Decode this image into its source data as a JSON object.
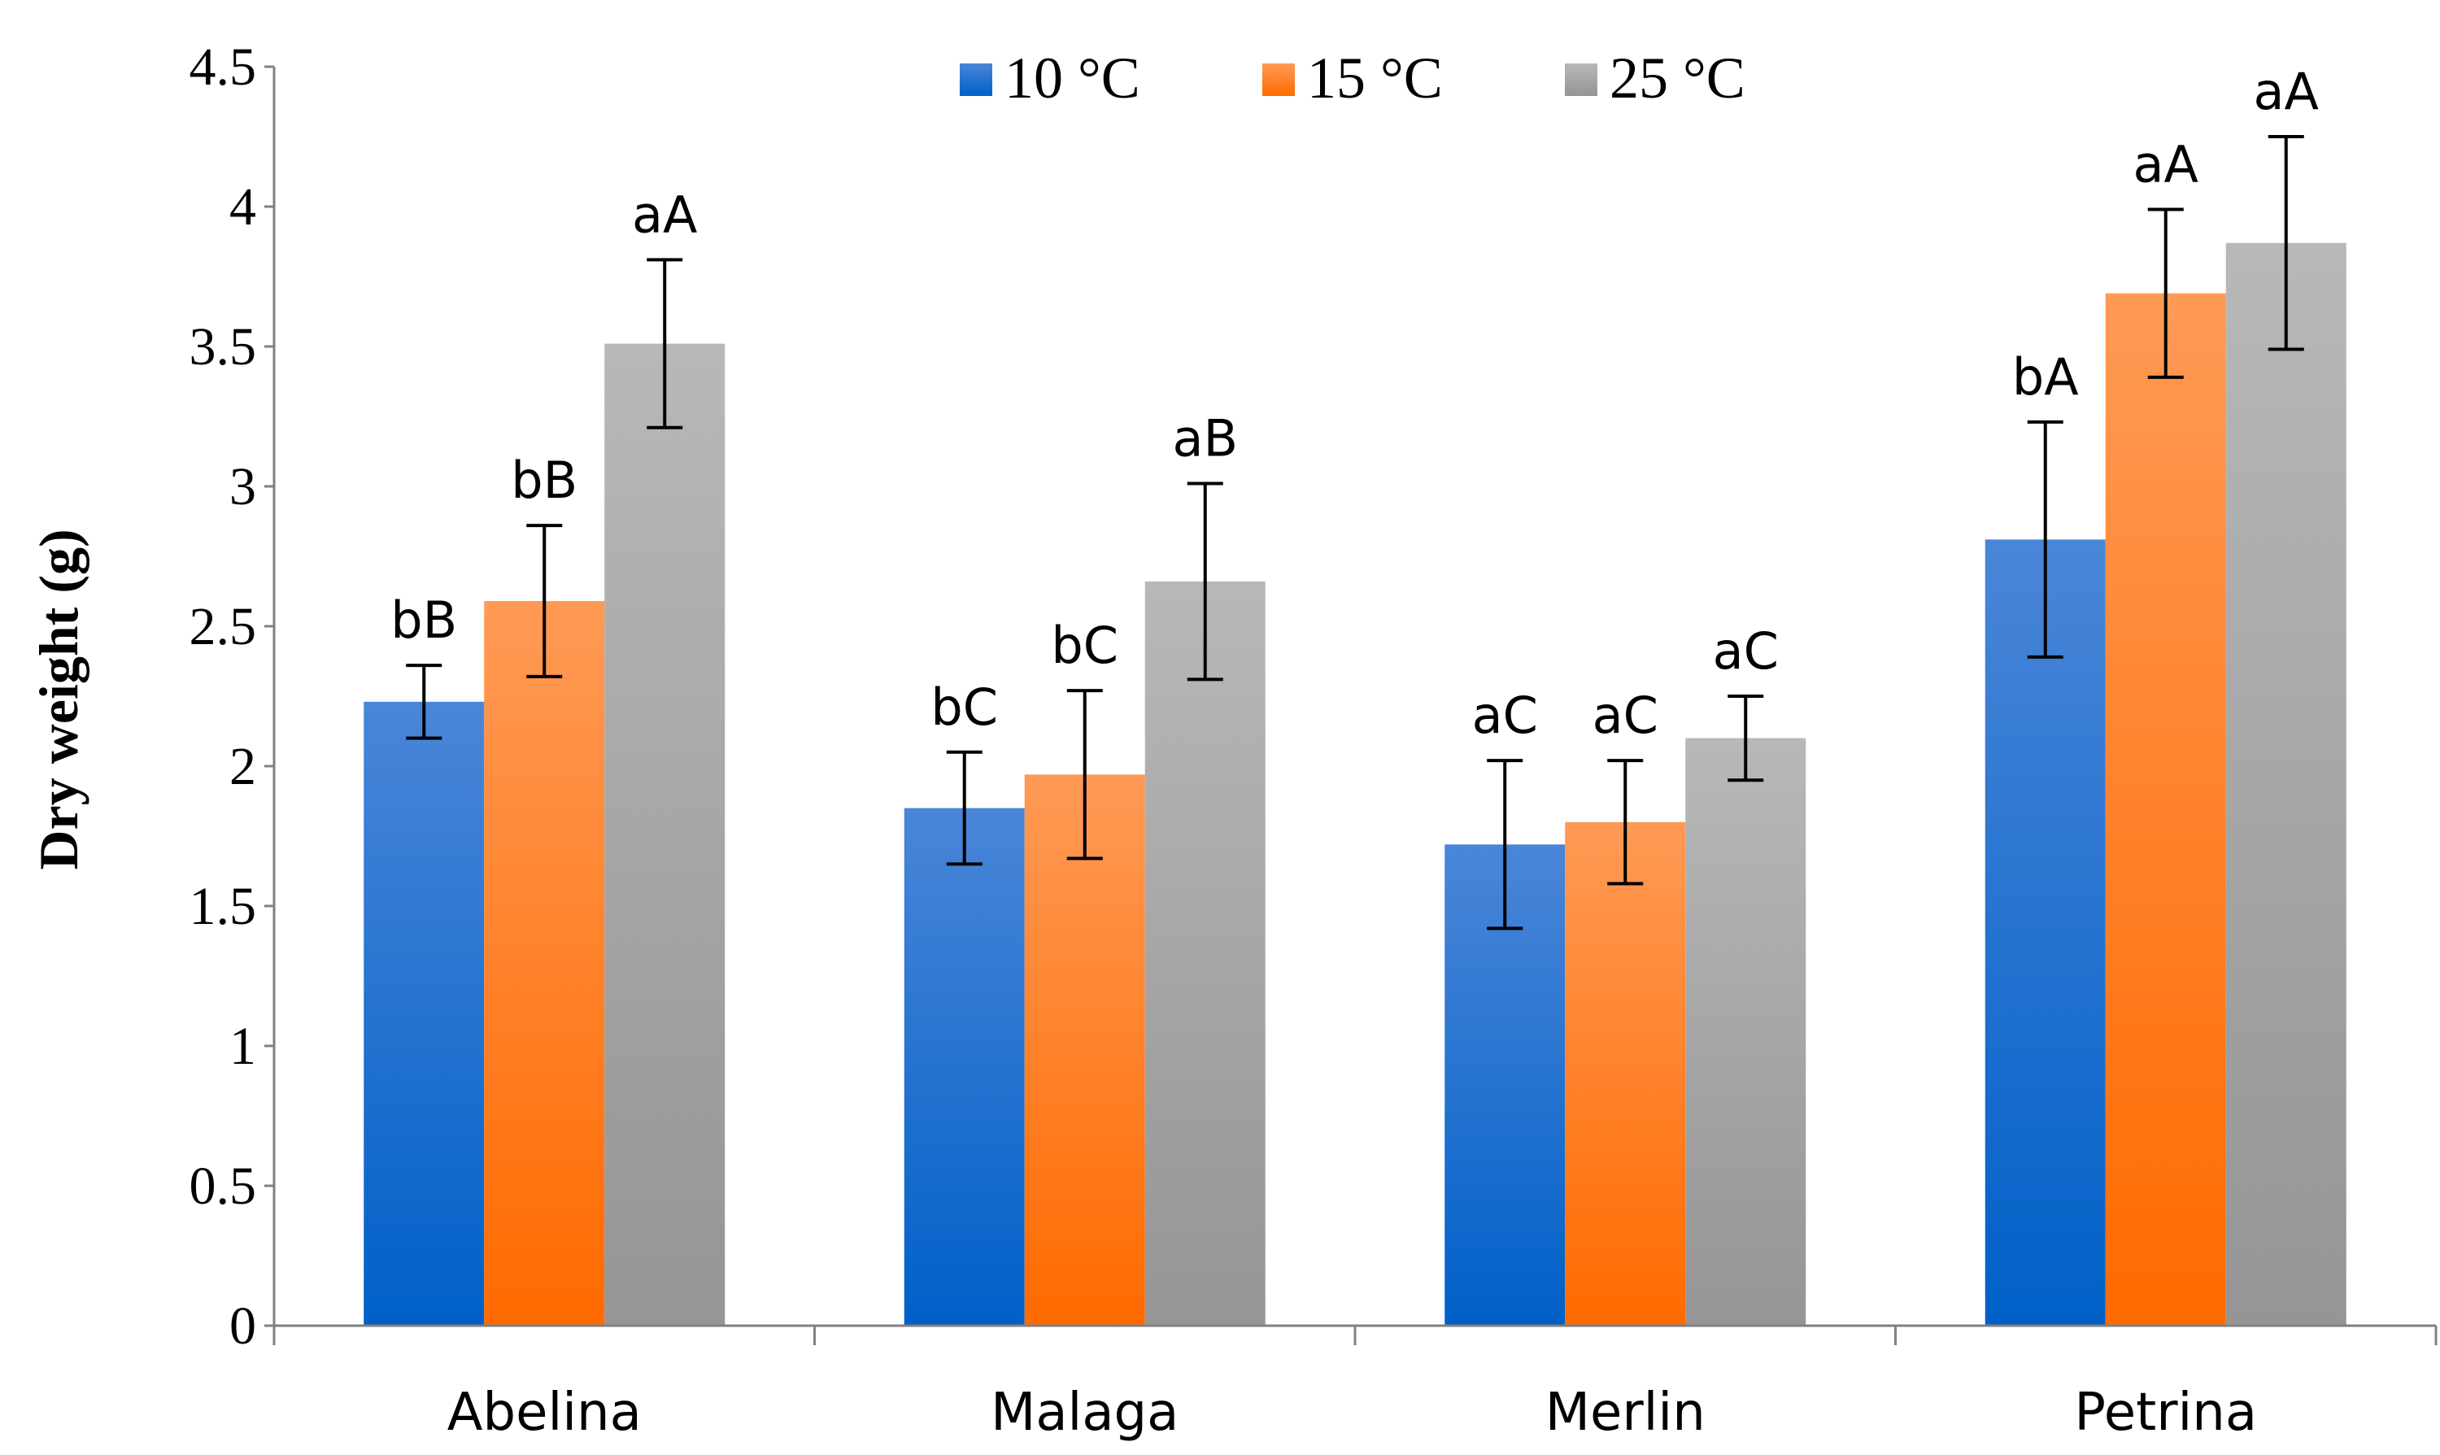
{
  "chart_data": {
    "type": "bar",
    "title": "",
    "xlabel": "",
    "ylabel": "Dry weight (g)",
    "ylim": [
      0,
      4.5
    ],
    "yticks": [
      "0",
      "0.5",
      "1",
      "1.5",
      "2",
      "2.5",
      "3",
      "3.5",
      "4",
      "4.5"
    ],
    "categories": [
      "Abelina",
      "Malaga",
      "Merlin",
      "Petrina"
    ],
    "legend_position": "top-center",
    "grid": false,
    "series": [
      {
        "name": "10 °C",
        "color_top": "#4a86d8",
        "color_bottom": "#0060c8",
        "values": [
          2.23,
          1.85,
          1.72,
          2.81
        ],
        "errors": [
          0.13,
          0.2,
          0.3,
          0.42
        ],
        "labels": [
          "bB",
          "bC",
          "aC",
          "bA"
        ]
      },
      {
        "name": "15 °C",
        "color_top": "#ff9a55",
        "color_bottom": "#ff6a00",
        "values": [
          2.59,
          1.97,
          1.8,
          3.69
        ],
        "errors": [
          0.27,
          0.3,
          0.22,
          0.3
        ],
        "labels": [
          "bB",
          "bC",
          "aC",
          "aA"
        ]
      },
      {
        "name": "25 °C",
        "color_top": "#b8b8b8",
        "color_bottom": "#959595",
        "values": [
          3.51,
          2.66,
          2.1,
          3.87
        ],
        "errors": [
          0.3,
          0.35,
          0.15,
          0.38
        ],
        "labels": [
          "aA",
          "aB",
          "aC",
          "aA"
        ]
      }
    ]
  }
}
